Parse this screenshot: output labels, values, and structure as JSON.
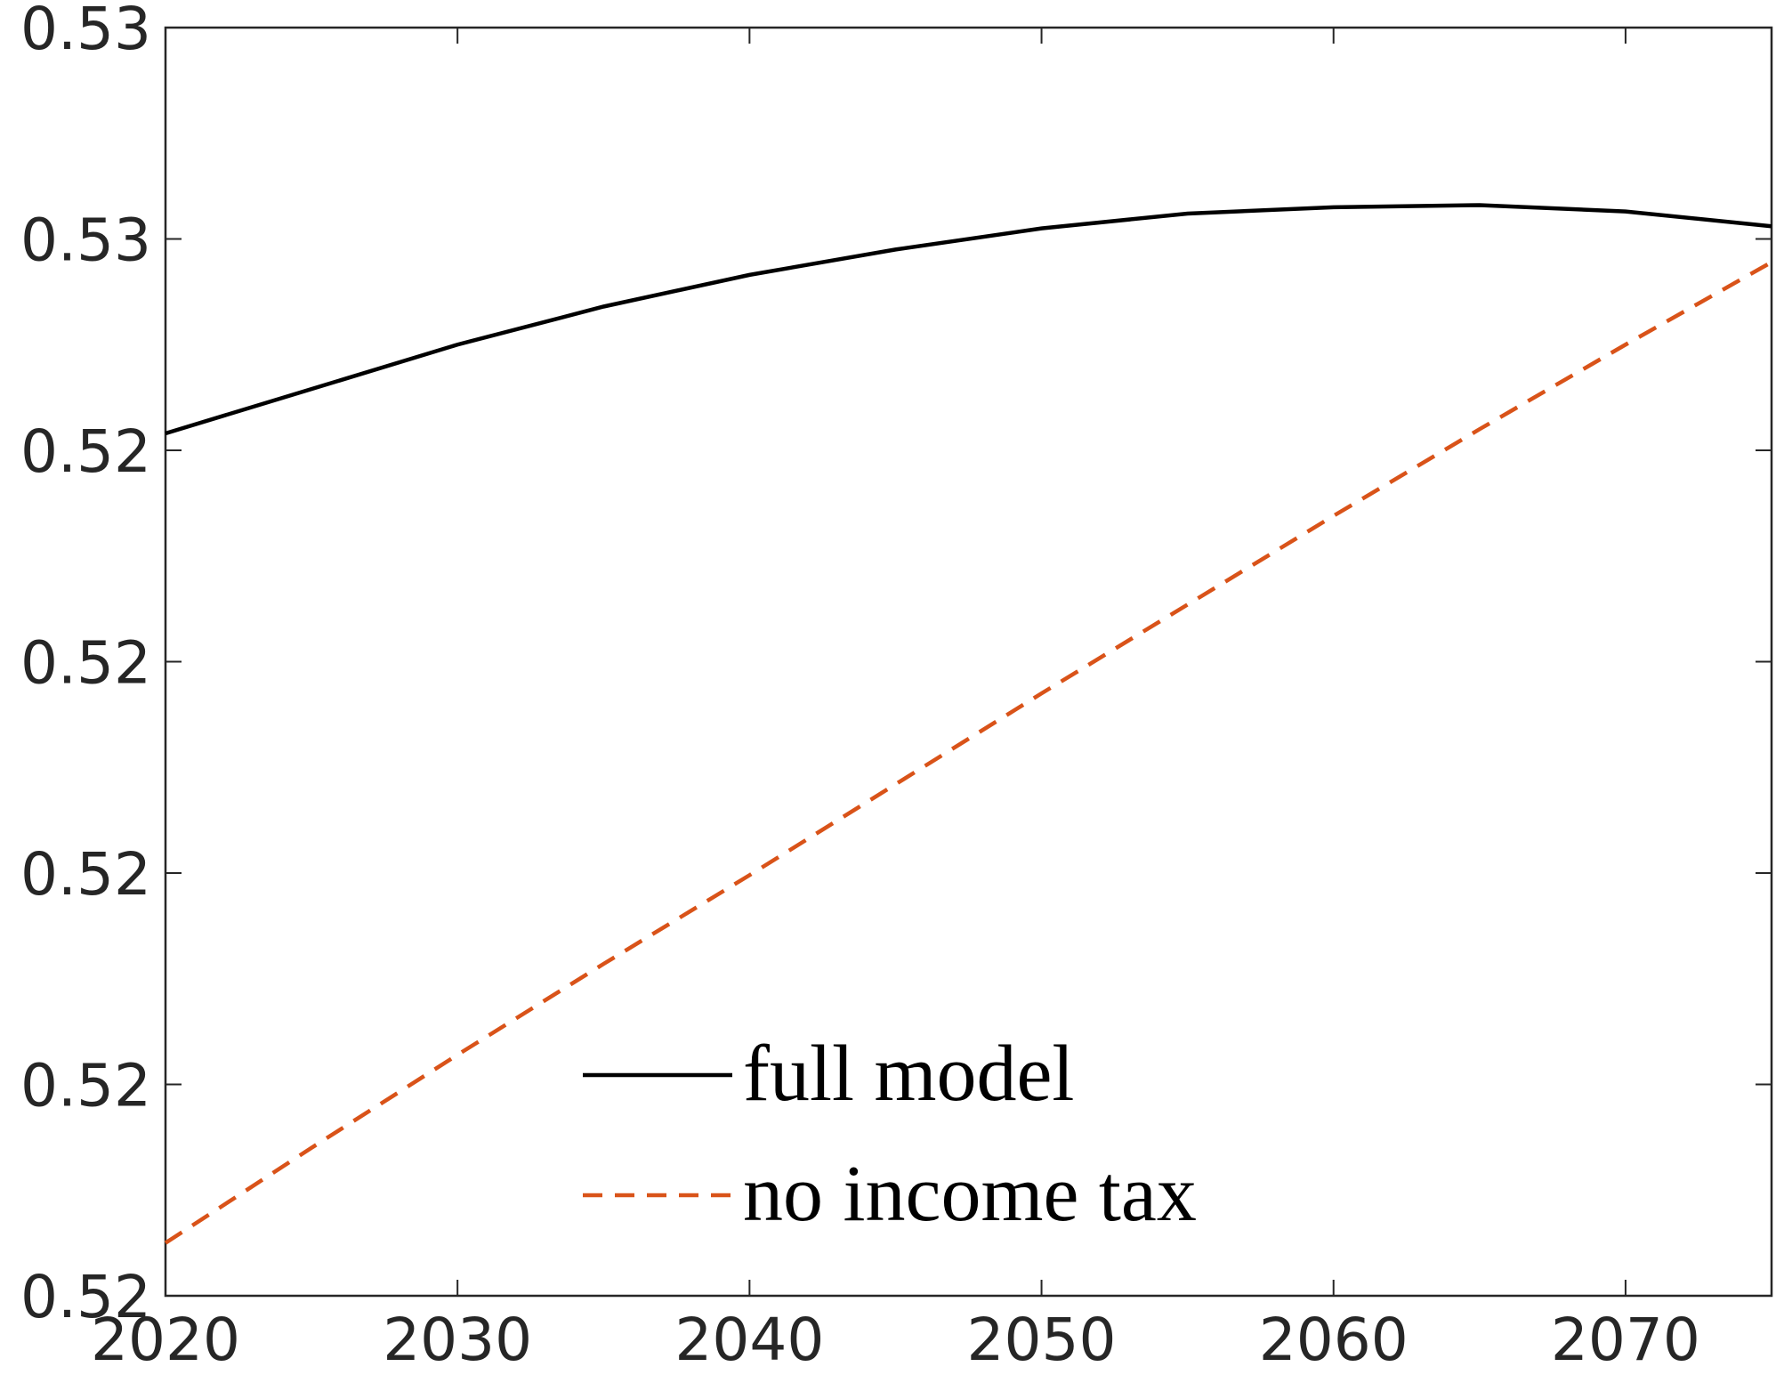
{
  "chart_data": {
    "type": "line",
    "x": [
      2020,
      2025,
      2030,
      2035,
      2040,
      2045,
      2050,
      2055,
      2060,
      2065,
      2070,
      2075
    ],
    "series": [
      {
        "name": "full model",
        "color": "#000000",
        "dash": "solid",
        "values": [
          0.52408,
          0.52429,
          0.5245,
          0.52468,
          0.52483,
          0.52495,
          0.52505,
          0.52512,
          0.52515,
          0.52516,
          0.52513,
          0.52506
        ]
      },
      {
        "name": "no income tax",
        "color": "#d95319",
        "dash": "dashed",
        "values": [
          0.52025,
          0.5207,
          0.52114,
          0.52157,
          0.52199,
          0.52242,
          0.52285,
          0.52327,
          0.52369,
          0.5241,
          0.5245,
          0.52489
        ]
      }
    ],
    "xlim": [
      2020,
      2075
    ],
    "xticks": [
      2020,
      2030,
      2040,
      2050,
      2060,
      2070
    ],
    "ylim": [
      0.52,
      0.526
    ],
    "yticks": [
      {
        "value": 0.52,
        "label": "0.52"
      },
      {
        "value": 0.521,
        "label": "0.52"
      },
      {
        "value": 0.522,
        "label": "0.52"
      },
      {
        "value": 0.523,
        "label": "0.52"
      },
      {
        "value": 0.524,
        "label": "0.52"
      },
      {
        "value": 0.525,
        "label": "0.53"
      },
      {
        "value": 0.526,
        "label": "0.53"
      }
    ],
    "grid": false,
    "legend": "lower-center"
  }
}
